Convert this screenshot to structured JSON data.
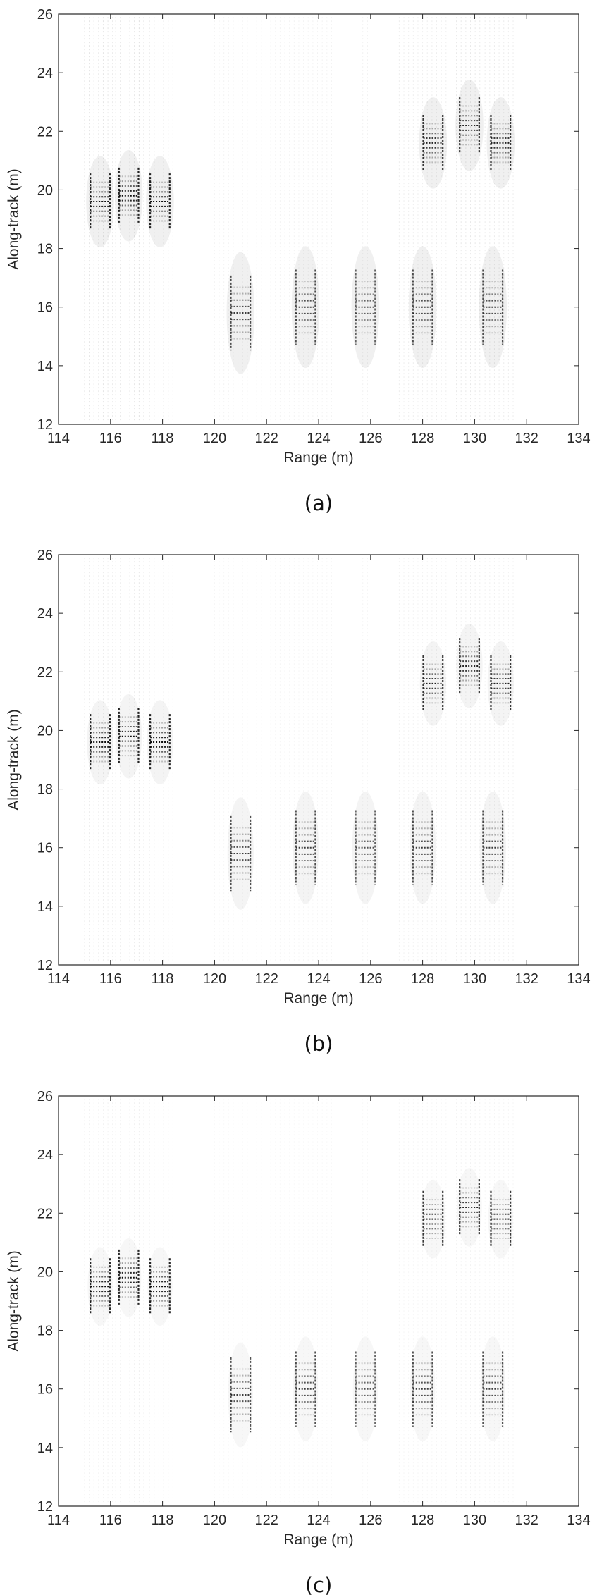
{
  "chart_data": [
    {
      "type": "heatmap",
      "caption": "(a)",
      "xlabel": "Range (m)",
      "ylabel": "Along-track (m)",
      "xlim": [
        114,
        134
      ],
      "ylim": [
        12,
        26
      ],
      "xticks": [
        "114",
        "116",
        "118",
        "120",
        "122",
        "124",
        "126",
        "128",
        "130",
        "132",
        "134"
      ],
      "yticks": [
        "12",
        "14",
        "16",
        "18",
        "20",
        "22",
        "24",
        "26"
      ],
      "colormap": "gray-inverted",
      "reflectors": [
        {
          "x": 115.6,
          "y": 19.6,
          "strength": 1.0
        },
        {
          "x": 116.7,
          "y": 19.8,
          "strength": 1.0
        },
        {
          "x": 117.9,
          "y": 19.6,
          "strength": 1.0
        },
        {
          "x": 121.0,
          "y": 15.8,
          "strength": 0.8
        },
        {
          "x": 123.5,
          "y": 16.0,
          "strength": 0.8
        },
        {
          "x": 125.8,
          "y": 16.0,
          "strength": 0.7
        },
        {
          "x": 128.0,
          "y": 16.0,
          "strength": 0.8
        },
        {
          "x": 130.7,
          "y": 16.0,
          "strength": 0.8
        },
        {
          "x": 128.4,
          "y": 21.6,
          "strength": 0.9
        },
        {
          "x": 129.8,
          "y": 22.2,
          "strength": 0.9
        },
        {
          "x": 131.0,
          "y": 21.6,
          "strength": 0.9
        }
      ]
    },
    {
      "type": "heatmap",
      "caption": "(b)",
      "xlabel": "Range (m)",
      "ylabel": "Along-track (m)",
      "xlim": [
        114,
        134
      ],
      "ylim": [
        12,
        26
      ],
      "xticks": [
        "114",
        "116",
        "118",
        "120",
        "122",
        "124",
        "126",
        "128",
        "130",
        "132",
        "134"
      ],
      "yticks": [
        "12",
        "14",
        "16",
        "18",
        "20",
        "22",
        "24",
        "26"
      ],
      "colormap": "gray-inverted",
      "reflectors": [
        {
          "x": 115.6,
          "y": 19.6,
          "strength": 1.0
        },
        {
          "x": 116.7,
          "y": 19.8,
          "strength": 1.0
        },
        {
          "x": 117.9,
          "y": 19.6,
          "strength": 1.0
        },
        {
          "x": 121.0,
          "y": 15.8,
          "strength": 0.8
        },
        {
          "x": 123.5,
          "y": 16.0,
          "strength": 0.8
        },
        {
          "x": 125.8,
          "y": 16.0,
          "strength": 0.7
        },
        {
          "x": 128.0,
          "y": 16.0,
          "strength": 0.8
        },
        {
          "x": 130.7,
          "y": 16.0,
          "strength": 0.8
        },
        {
          "x": 128.4,
          "y": 21.6,
          "strength": 0.9
        },
        {
          "x": 129.8,
          "y": 22.2,
          "strength": 0.9
        },
        {
          "x": 131.0,
          "y": 21.6,
          "strength": 0.9
        }
      ]
    },
    {
      "type": "heatmap",
      "caption": "(c)",
      "xlabel": "Range (m)",
      "ylabel": "Along-track (m)",
      "xlim": [
        114,
        134
      ],
      "ylim": [
        12,
        26
      ],
      "xticks": [
        "114",
        "116",
        "118",
        "120",
        "122",
        "124",
        "126",
        "128",
        "130",
        "132",
        "134"
      ],
      "yticks": [
        "12",
        "14",
        "16",
        "18",
        "20",
        "22",
        "24",
        "26"
      ],
      "colormap": "gray-inverted",
      "reflectors": [
        {
          "x": 115.6,
          "y": 19.5,
          "strength": 1.0
        },
        {
          "x": 116.7,
          "y": 19.8,
          "strength": 1.0
        },
        {
          "x": 117.9,
          "y": 19.5,
          "strength": 1.0
        },
        {
          "x": 121.0,
          "y": 15.8,
          "strength": 0.8
        },
        {
          "x": 123.5,
          "y": 16.0,
          "strength": 0.8
        },
        {
          "x": 125.8,
          "y": 16.0,
          "strength": 0.7
        },
        {
          "x": 128.0,
          "y": 16.0,
          "strength": 0.8
        },
        {
          "x": 130.7,
          "y": 16.0,
          "strength": 0.8
        },
        {
          "x": 128.4,
          "y": 21.8,
          "strength": 0.9
        },
        {
          "x": 129.8,
          "y": 22.2,
          "strength": 0.9
        },
        {
          "x": 131.0,
          "y": 21.8,
          "strength": 0.9
        }
      ]
    }
  ]
}
